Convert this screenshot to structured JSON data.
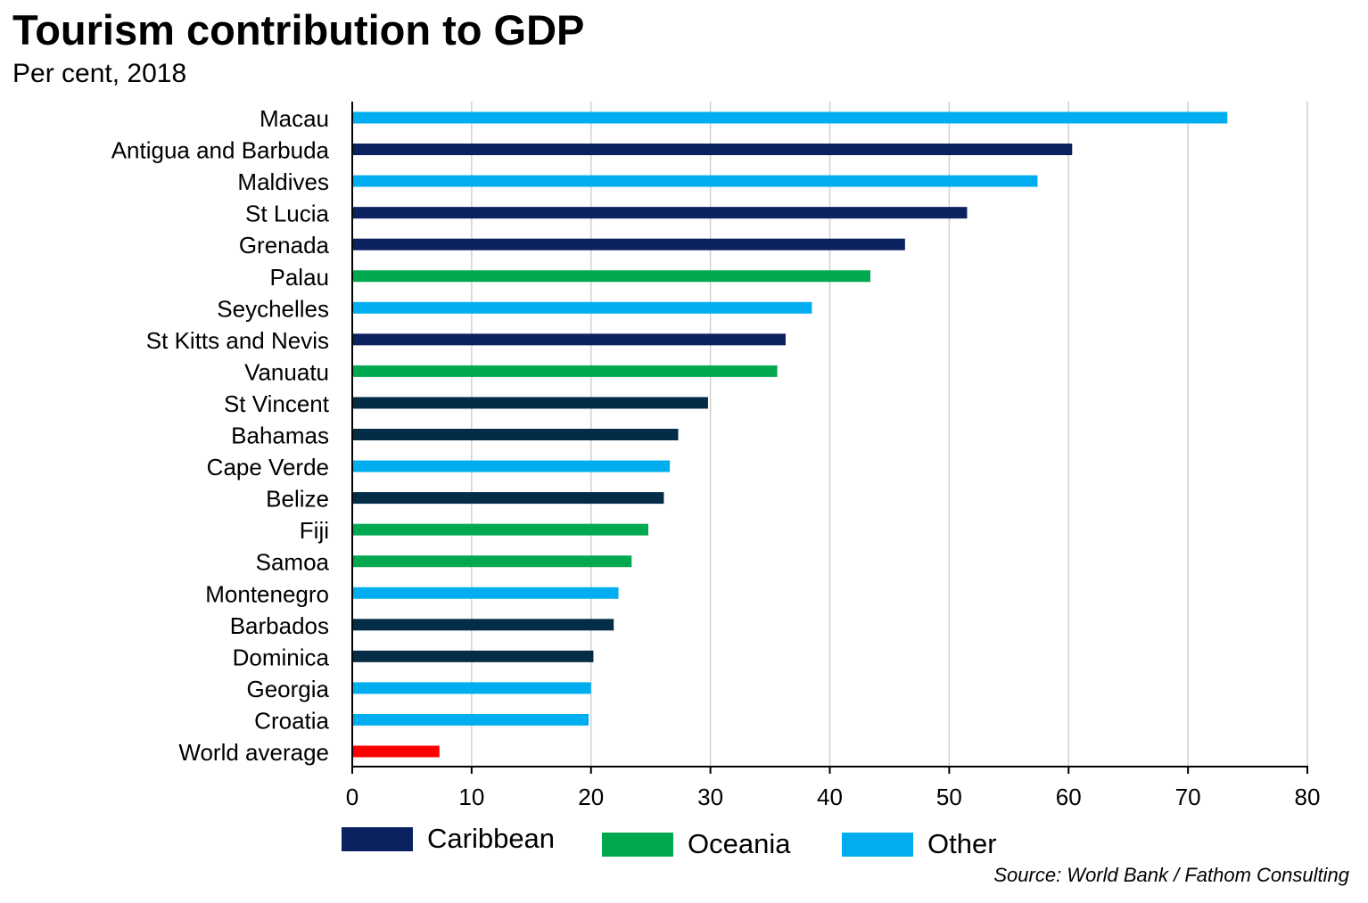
{
  "title": "Tourism contribution to GDP",
  "subtitle": "Per cent, 2018",
  "source": "Source: World Bank / Fathom Consulting",
  "colors": {
    "caribbean_navy": "#0b2160",
    "caribbean_dark": "#032c47",
    "oceania": "#00a84f",
    "other": "#00aeef",
    "world": "#ff0000",
    "grid": "#d0d0d0",
    "axis": "#000000"
  },
  "legend": [
    {
      "label": "Caribbean",
      "color": "#0b2160"
    },
    {
      "label": "Oceania",
      "color": "#00a84f"
    },
    {
      "label": "Other",
      "color": "#00aeef"
    }
  ],
  "chart_data": {
    "type": "bar",
    "orientation": "horizontal",
    "title": "Tourism contribution to GDP",
    "subtitle": "Per cent, 2018",
    "xlabel": "",
    "ylabel": "",
    "xlim": [
      0,
      80
    ],
    "xticks": [
      0,
      10,
      20,
      30,
      40,
      50,
      60,
      70,
      80
    ],
    "grid": "vertical",
    "legend_position": "bottom",
    "categories": [
      "Macau",
      "Antigua and Barbuda",
      "Maldives",
      "St Lucia",
      "Grenada",
      "Palau",
      "Seychelles",
      "St Kitts and Nevis",
      "Vanuatu",
      "St Vincent",
      "Bahamas",
      "Cape Verde",
      "Belize",
      "Fiji",
      "Samoa",
      "Montenegro",
      "Barbados",
      "Dominica",
      "Georgia",
      "Croatia",
      "World average"
    ],
    "values": [
      73.3,
      60.3,
      57.4,
      51.5,
      46.3,
      43.4,
      38.5,
      36.3,
      35.6,
      29.8,
      27.3,
      26.6,
      26.1,
      24.8,
      23.4,
      22.3,
      21.9,
      20.2,
      20.0,
      19.8,
      7.3
    ],
    "groups": [
      "Other",
      "Caribbean",
      "Other",
      "Caribbean",
      "Caribbean",
      "Oceania",
      "Other",
      "Caribbean",
      "Oceania",
      "Caribbean",
      "Caribbean",
      "Other",
      "Caribbean",
      "Oceania",
      "Oceania",
      "Other",
      "Caribbean",
      "Caribbean",
      "Other",
      "Other",
      "World"
    ],
    "bar_colors": [
      "#00aeef",
      "#0b2160",
      "#00aeef",
      "#0b2160",
      "#0b2160",
      "#00a84f",
      "#00aeef",
      "#0b2160",
      "#00a84f",
      "#032c47",
      "#032c47",
      "#00aeef",
      "#032c47",
      "#00a84f",
      "#00a84f",
      "#00aeef",
      "#032c47",
      "#032c47",
      "#00aeef",
      "#00aeef",
      "#ff0000"
    ]
  }
}
